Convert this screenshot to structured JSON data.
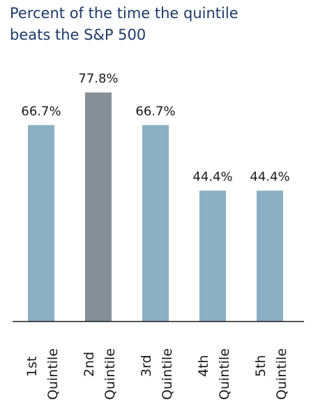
{
  "chart_data": {
    "type": "bar",
    "title_lines": [
      "Percent of the time the quintile",
      "beats the S&P 500"
    ],
    "categories": [
      [
        "1st",
        "Quintile"
      ],
      [
        "2nd",
        "Quintile"
      ],
      [
        "3rd",
        "Quintile"
      ],
      [
        "4th",
        "Quintile"
      ],
      [
        "5th",
        "Quintile"
      ]
    ],
    "values": [
      66.7,
      77.8,
      66.7,
      44.4,
      44.4
    ],
    "data_labels": [
      "66.7%",
      "77.8%",
      "66.7%",
      "44.4%",
      "44.4%"
    ],
    "highlight_index": 1,
    "colors": {
      "bar": "#8bb0c3",
      "highlight": "#858f97",
      "axis": "#1a1a1a"
    },
    "ylim": [
      0,
      100
    ],
    "grid": false,
    "legend": "none"
  }
}
